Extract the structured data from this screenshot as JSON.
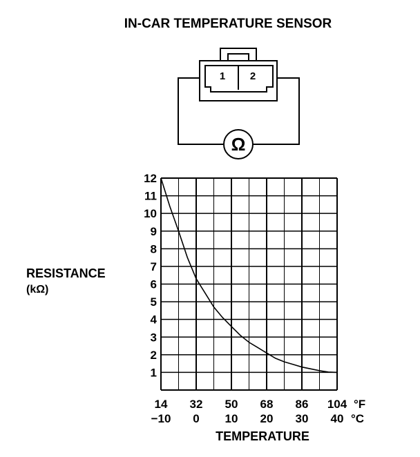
{
  "title": "IN-CAR TEMPERATURE SENSOR",
  "connector": {
    "pin1": "1",
    "pin2": "2",
    "meter_symbol": "Ω",
    "meter_icon": "ohmmeter-icon"
  },
  "chart_data": {
    "type": "line",
    "ylabel_line1": "RESISTANCE",
    "ylabel_line2": "(kΩ)",
    "xlabel": "TEMPERATURE",
    "x_ticks_f": [
      "14",
      "32",
      "50",
      "68",
      "86",
      "104"
    ],
    "x_ticks_c": [
      "−10",
      "0",
      "10",
      "20",
      "30",
      "40"
    ],
    "x_unit_f": "°F",
    "x_unit_c": "°C",
    "y_ticks": [
      "1",
      "2",
      "3",
      "4",
      "5",
      "6",
      "7",
      "8",
      "9",
      "10",
      "11",
      "12"
    ],
    "xlim": [
      -10,
      40
    ],
    "ylim": [
      0,
      12
    ],
    "grid": true,
    "series": [
      {
        "x": [
          -10,
          -7.5,
          -5,
          -2.5,
          0,
          2.5,
          5,
          7.5,
          10,
          12.5,
          15,
          17.5,
          20,
          22.5,
          25,
          27.5,
          30,
          32.5,
          35,
          37.5,
          40
        ],
        "y": [
          12.0,
          10.4,
          9.0,
          7.5,
          6.3,
          5.5,
          4.7,
          4.1,
          3.6,
          3.1,
          2.7,
          2.4,
          2.1,
          1.8,
          1.6,
          1.45,
          1.3,
          1.2,
          1.1,
          1.02,
          1.0
        ]
      }
    ]
  }
}
